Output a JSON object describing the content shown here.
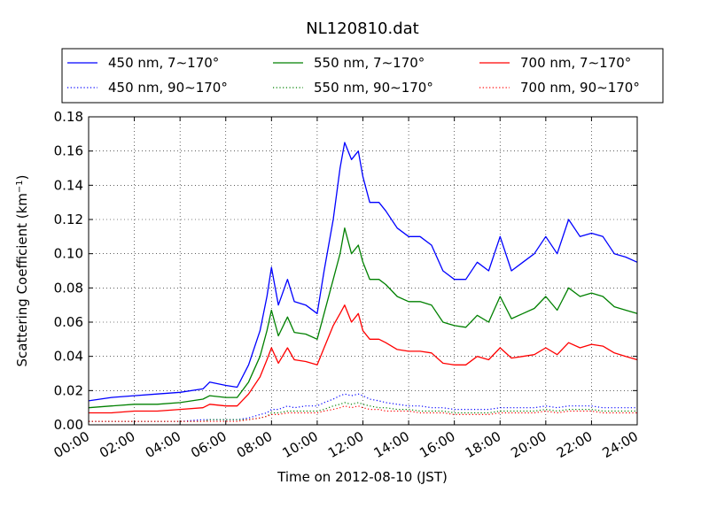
{
  "chart_data": {
    "type": "line",
    "title": "NL120810.dat",
    "xlabel": "Time on 2012-08-10 (JST)",
    "ylabel": "Scattering Coefficient (km",
    "ylabel_sup": "−1",
    "ylabel_end": ")",
    "x_unit": "hours",
    "xlim": [
      0,
      24
    ],
    "ylim": [
      0,
      0.18
    ],
    "grid": true,
    "legend_position": "top",
    "x_ticks": [
      0,
      2,
      4,
      6,
      8,
      10,
      12,
      14,
      16,
      18,
      20,
      22,
      24
    ],
    "x_tick_labels": [
      "00:00",
      "02:00",
      "04:00",
      "06:00",
      "08:00",
      "10:00",
      "12:00",
      "14:00",
      "16:00",
      "18:00",
      "20:00",
      "22:00",
      "24:00"
    ],
    "y_ticks": [
      0,
      0.02,
      0.04,
      0.06,
      0.08,
      0.1,
      0.12,
      0.14,
      0.16,
      0.18
    ],
    "y_tick_labels": [
      "0.00",
      "0.02",
      "0.04",
      "0.06",
      "0.08",
      "0.10",
      "0.12",
      "0.14",
      "0.16",
      "0.18"
    ],
    "x": [
      0,
      1,
      2,
      3,
      4,
      5,
      5.3,
      6,
      6.5,
      7,
      7.5,
      7.8,
      8,
      8.3,
      8.7,
      9,
      9.5,
      10,
      10.3,
      10.7,
      11,
      11.2,
      11.5,
      11.8,
      12,
      12.3,
      12.7,
      13,
      13.5,
      14,
      14.5,
      15,
      15.5,
      16,
      16.5,
      17,
      17.5,
      18,
      18.5,
      19,
      19.5,
      20,
      20.5,
      21,
      21.5,
      22,
      22.5,
      23,
      23.5,
      24
    ],
    "series": [
      {
        "name": "450 nm, 7∼170°",
        "color": "#0000ff",
        "style": "solid",
        "values": [
          0.014,
          0.016,
          0.017,
          0.018,
          0.019,
          0.021,
          0.025,
          0.023,
          0.022,
          0.035,
          0.055,
          0.075,
          0.092,
          0.07,
          0.085,
          0.072,
          0.07,
          0.065,
          0.09,
          0.12,
          0.15,
          0.165,
          0.155,
          0.16,
          0.145,
          0.13,
          0.13,
          0.125,
          0.115,
          0.11,
          0.11,
          0.105,
          0.09,
          0.085,
          0.085,
          0.095,
          0.09,
          0.11,
          0.09,
          0.095,
          0.1,
          0.11,
          0.1,
          0.12,
          0.11,
          0.112,
          0.11,
          0.1,
          0.098,
          0.095
        ]
      },
      {
        "name": "450 nm, 90∼170°",
        "color": "#0000ff",
        "style": "dotted",
        "values": [
          0.002,
          0.002,
          0.002,
          0.002,
          0.002,
          0.003,
          0.003,
          0.003,
          0.003,
          0.004,
          0.006,
          0.007,
          0.009,
          0.009,
          0.011,
          0.01,
          0.011,
          0.011,
          0.013,
          0.015,
          0.017,
          0.018,
          0.017,
          0.018,
          0.017,
          0.015,
          0.014,
          0.013,
          0.012,
          0.011,
          0.011,
          0.01,
          0.01,
          0.009,
          0.009,
          0.009,
          0.009,
          0.01,
          0.01,
          0.01,
          0.01,
          0.011,
          0.01,
          0.011,
          0.011,
          0.011,
          0.01,
          0.01,
          0.01,
          0.01
        ]
      },
      {
        "name": "550 nm, 7∼170°",
        "color": "#008000",
        "style": "solid",
        "values": [
          0.01,
          0.011,
          0.012,
          0.012,
          0.013,
          0.015,
          0.017,
          0.016,
          0.016,
          0.025,
          0.04,
          0.055,
          0.067,
          0.052,
          0.063,
          0.054,
          0.053,
          0.05,
          0.065,
          0.085,
          0.1,
          0.115,
          0.1,
          0.105,
          0.095,
          0.085,
          0.085,
          0.082,
          0.075,
          0.072,
          0.072,
          0.07,
          0.06,
          0.058,
          0.057,
          0.064,
          0.06,
          0.075,
          0.062,
          0.065,
          0.068,
          0.075,
          0.067,
          0.08,
          0.075,
          0.077,
          0.075,
          0.069,
          0.067,
          0.065
        ]
      },
      {
        "name": "550 nm, 90∼170°",
        "color": "#008000",
        "style": "dotted",
        "values": [
          0.002,
          0.002,
          0.002,
          0.002,
          0.002,
          0.002,
          0.003,
          0.003,
          0.003,
          0.003,
          0.004,
          0.005,
          0.007,
          0.007,
          0.008,
          0.008,
          0.008,
          0.008,
          0.009,
          0.011,
          0.012,
          0.013,
          0.012,
          0.013,
          0.012,
          0.011,
          0.01,
          0.01,
          0.009,
          0.009,
          0.008,
          0.008,
          0.008,
          0.007,
          0.007,
          0.007,
          0.007,
          0.008,
          0.008,
          0.008,
          0.008,
          0.009,
          0.008,
          0.009,
          0.009,
          0.009,
          0.008,
          0.008,
          0.008,
          0.008
        ]
      },
      {
        "name": "700 nm, 7∼170°",
        "color": "#ff0000",
        "style": "solid",
        "values": [
          0.007,
          0.007,
          0.008,
          0.008,
          0.009,
          0.01,
          0.012,
          0.011,
          0.011,
          0.018,
          0.028,
          0.038,
          0.045,
          0.036,
          0.045,
          0.038,
          0.037,
          0.035,
          0.045,
          0.058,
          0.065,
          0.07,
          0.06,
          0.065,
          0.055,
          0.05,
          0.05,
          0.048,
          0.044,
          0.043,
          0.043,
          0.042,
          0.036,
          0.035,
          0.035,
          0.04,
          0.038,
          0.045,
          0.039,
          0.04,
          0.041,
          0.045,
          0.041,
          0.048,
          0.045,
          0.047,
          0.046,
          0.042,
          0.04,
          0.038
        ]
      },
      {
        "name": "700 nm, 90∼170°",
        "color": "#ff0000",
        "style": "dotted",
        "values": [
          0.002,
          0.002,
          0.002,
          0.002,
          0.002,
          0.002,
          0.002,
          0.002,
          0.002,
          0.003,
          0.004,
          0.005,
          0.006,
          0.006,
          0.007,
          0.007,
          0.007,
          0.007,
          0.008,
          0.009,
          0.01,
          0.011,
          0.01,
          0.011,
          0.01,
          0.009,
          0.009,
          0.008,
          0.008,
          0.008,
          0.007,
          0.007,
          0.007,
          0.006,
          0.006,
          0.006,
          0.006,
          0.007,
          0.007,
          0.007,
          0.007,
          0.008,
          0.007,
          0.008,
          0.008,
          0.008,
          0.007,
          0.007,
          0.007,
          0.007
        ]
      }
    ]
  }
}
